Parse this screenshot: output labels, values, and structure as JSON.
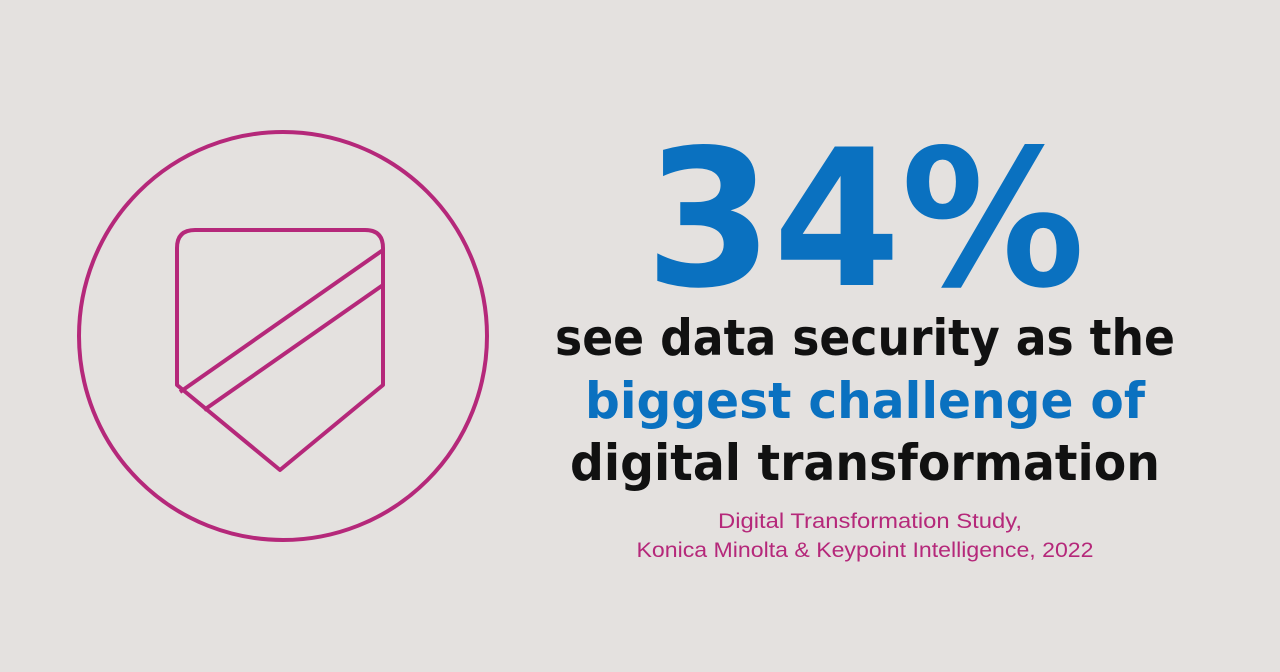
{
  "stat": "34%",
  "statement": [
    "see data security as the",
    "biggest challenge of",
    "digital transformation"
  ],
  "source": [
    "Digital Transformation Study,",
    "Konica Minolta & Keypoint Intelligence, 2022"
  ]
}
